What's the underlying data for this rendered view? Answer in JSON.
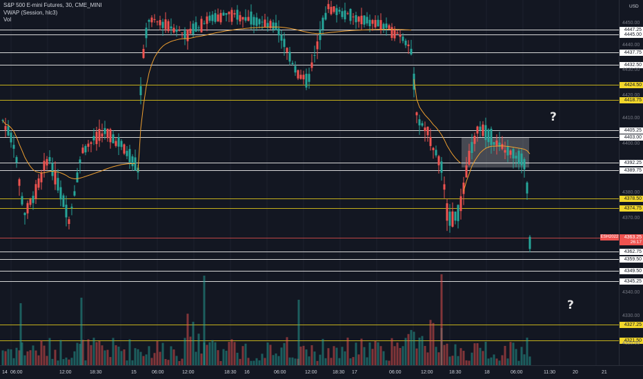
{
  "legend": {
    "symbol": "S&P 500 E-mini Futures, 30, CME_MINI",
    "indicator": "VWAP (Session, hlc3)",
    "volume": "Vol"
  },
  "price_axis": {
    "currency": "USD",
    "tick_labels": [
      "4450.00",
      "4440.00",
      "4430.00",
      "4420.00",
      "4410.00",
      "4400.00",
      "4380.00",
      "4370.00",
      "4340.00",
      "4330.00",
      "4320.00"
    ]
  },
  "time_axis": {
    "labels": [
      "14",
      "06:00",
      "12:00",
      "18:30",
      "15",
      "06:00",
      "12:00",
      "18:30",
      "16",
      "06:00",
      "12:00",
      "18:30",
      "17",
      "06:00",
      "12:00",
      "18:30",
      "18",
      "06:00",
      "11:30",
      "20",
      "21"
    ]
  },
  "levels": [
    {
      "value": "4447.25",
      "style": "white"
    },
    {
      "value": "4445.00",
      "style": "white"
    },
    {
      "value": "4437.75",
      "style": "white"
    },
    {
      "value": "4432.50",
      "style": "white"
    },
    {
      "value": "4424.50",
      "style": "yellow"
    },
    {
      "value": "4418.75",
      "style": "yellow"
    },
    {
      "value": "4405.25",
      "style": "white"
    },
    {
      "value": "4403.00",
      "style": "white"
    },
    {
      "value": "4392.25",
      "style": "white"
    },
    {
      "value": "4389.75",
      "style": "white"
    },
    {
      "value": "4378.50",
      "style": "yellow"
    },
    {
      "value": "4374.75",
      "style": "yellow"
    },
    {
      "value": "4362.75",
      "style": "white"
    },
    {
      "value": "4359.50",
      "style": "white"
    },
    {
      "value": "4349.50",
      "style": "white"
    },
    {
      "value": "4345.25",
      "style": "white"
    },
    {
      "value": "4327.25",
      "style": "yellow"
    },
    {
      "value": "4321.50",
      "style": "yellow"
    }
  ],
  "last_price": {
    "symbol": "ESH2022",
    "value": "4363.25",
    "countdown": "26:17"
  },
  "annotations": {
    "q1": "?",
    "q2": "?"
  },
  "colors": {
    "up": "#26a69a",
    "down": "#ef5350",
    "vwap": "#f0a030",
    "white_line": "#ffffff",
    "yellow_line": "#c7b21c",
    "background": "#131722"
  },
  "chart_data": {
    "type": "candlestick",
    "price_range": [
      4310,
      4455
    ],
    "visible_price_labels": [
      "4450.00",
      "4440.00",
      "4430.00",
      "4420.00",
      "4410.00",
      "4400.00",
      "4380.00",
      "4370.00",
      "4340.00",
      "4330.00",
      "4320.00"
    ]
  }
}
